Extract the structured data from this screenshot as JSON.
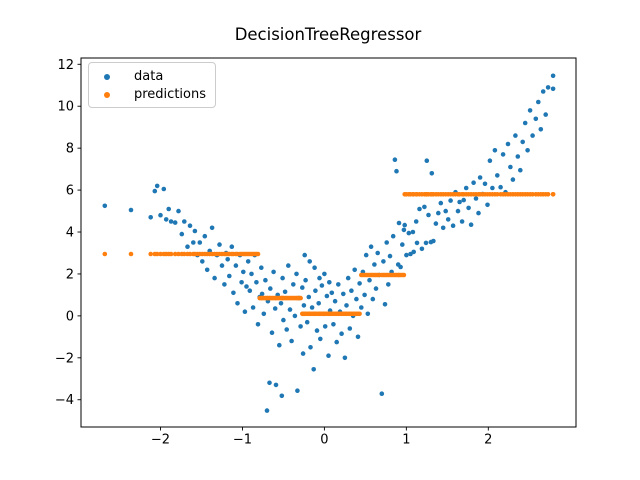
{
  "title": "DecisionTreeRegressor",
  "legend": {
    "items": [
      {
        "label": "data",
        "color": "#1f77b4"
      },
      {
        "label": "predictions",
        "color": "#ff7f0e"
      }
    ]
  },
  "colors": {
    "data_series": "#1f77b4",
    "prediction_series": "#ff7f0e",
    "spine": "#000000",
    "background": "#ffffff",
    "legend_border": "#cccccc"
  },
  "chart_data": {
    "type": "scatter",
    "title": "DecisionTreeRegressor",
    "xlabel": "",
    "ylabel": "",
    "grid": false,
    "legend_position": "upper left",
    "xlim": [
      -2.97,
      3.07
    ],
    "ylim": [
      -5.3,
      12.3
    ],
    "xticks": [
      -2,
      -1,
      0,
      1,
      2
    ],
    "yticks": [
      12,
      10,
      8,
      6,
      4,
      2,
      0,
      -2,
      -4
    ],
    "series": [
      {
        "name": "data",
        "type": "scatter",
        "color": "#1f77b4",
        "x": [
          -2.68,
          -2.36,
          -2.12,
          -2.07,
          -2.04,
          -2.0,
          -1.96,
          -1.93,
          -1.9,
          -1.87,
          -1.82,
          -1.78,
          -1.74,
          -1.71,
          -1.67,
          -1.64,
          -1.6,
          -1.58,
          -1.55,
          -1.52,
          -1.49,
          -1.46,
          -1.43,
          -1.4,
          -1.37,
          -1.34,
          -1.31,
          -1.28,
          -1.25,
          -1.22,
          -1.2,
          -1.18,
          -1.16,
          -1.13,
          -1.11,
          -1.08,
          -1.06,
          -1.03,
          -1.01,
          -0.99,
          -0.97,
          -0.95,
          -0.93,
          -0.91,
          -0.89,
          -0.87,
          -0.85,
          -0.83,
          -0.81,
          -0.79,
          -0.77,
          -0.76,
          -0.74,
          -0.72,
          -0.7,
          -0.69,
          -0.67,
          -0.66,
          -0.64,
          -0.62,
          -0.6,
          -0.59,
          -0.57,
          -0.55,
          -0.53,
          -0.52,
          -0.51,
          -0.5,
          -0.48,
          -0.46,
          -0.44,
          -0.42,
          -0.4,
          -0.38,
          -0.36,
          -0.34,
          -0.33,
          -0.31,
          -0.29,
          -0.27,
          -0.26,
          -0.25,
          -0.24,
          -0.23,
          -0.21,
          -0.19,
          -0.18,
          -0.17,
          -0.15,
          -0.13,
          -0.12,
          -0.11,
          -0.09,
          -0.07,
          -0.06,
          -0.05,
          -0.03,
          -0.01,
          0.0,
          0.01,
          0.03,
          0.05,
          0.06,
          0.07,
          0.09,
          0.11,
          0.13,
          0.15,
          0.17,
          0.19,
          0.21,
          0.23,
          0.25,
          0.27,
          0.29,
          0.31,
          0.33,
          0.35,
          0.37,
          0.39,
          0.41,
          0.43,
          0.45,
          0.47,
          0.49,
          0.51,
          0.53,
          0.55,
          0.57,
          0.59,
          0.61,
          0.63,
          0.65,
          0.67,
          0.7,
          0.72,
          0.74,
          0.76,
          0.78,
          0.8,
          0.82,
          0.84,
          0.86,
          0.88,
          0.9,
          0.91,
          0.93,
          0.95,
          0.97,
          0.98,
          1.0,
          1.03,
          1.05,
          1.08,
          1.09,
          1.12,
          1.13,
          1.16,
          1.19,
          1.22,
          1.24,
          1.25,
          1.27,
          1.3,
          1.31,
          1.33,
          1.36,
          1.39,
          1.42,
          1.45,
          1.48,
          1.51,
          1.54,
          1.57,
          1.6,
          1.63,
          1.65,
          1.68,
          1.7,
          1.73,
          1.76,
          1.79,
          1.82,
          1.85,
          1.88,
          1.9,
          1.93,
          1.96,
          1.99,
          2.02,
          2.05,
          2.08,
          2.11,
          2.15,
          2.18,
          2.21,
          2.24,
          2.27,
          2.3,
          2.33,
          2.36,
          2.39,
          2.42,
          2.45,
          2.48,
          2.51,
          2.54,
          2.58,
          2.61,
          2.64,
          2.67,
          2.7,
          2.73,
          2.79,
          2.79
        ],
        "y": [
          5.25,
          5.05,
          4.7,
          5.95,
          6.2,
          4.8,
          6.05,
          4.6,
          5.1,
          4.5,
          4.45,
          5.0,
          3.9,
          4.5,
          3.3,
          4.3,
          3.5,
          4.05,
          2.9,
          3.5,
          2.6,
          3.8,
          2.2,
          3.1,
          4.2,
          1.8,
          2.9,
          3.4,
          2.4,
          1.5,
          3.0,
          2.7,
          1.9,
          3.3,
          1.1,
          2.4,
          0.6,
          2.9,
          1.6,
          2.1,
          0.2,
          1.4,
          2.6,
          1.2,
          2.0,
          0.4,
          2.9,
          1.6,
          -0.4,
          0.9,
          2.3,
          1.05,
          0.1,
          1.7,
          -4.52,
          0.7,
          -3.19,
          1.3,
          -0.8,
          2.1,
          0.35,
          -3.29,
          1.0,
          -1.4,
          0.6,
          -3.81,
          1.8,
          -0.2,
          1.15,
          -0.65,
          2.4,
          0.3,
          -1.2,
          1.5,
          0.0,
          2.0,
          -3.57,
          0.85,
          -0.5,
          1.35,
          -1.8,
          0.5,
          2.9,
          1.7,
          -0.3,
          0.9,
          2.6,
          -1.5,
          0.4,
          -2.55,
          2.3,
          1.2,
          -0.7,
          0.6,
          1.8,
          -1.1,
          1.45,
          0.1,
          2.0,
          -0.5,
          0.95,
          -1.9,
          1.6,
          0.25,
          1.1,
          -0.4,
          0.7,
          -1.25,
          1.5,
          0.2,
          -0.85,
          1.05,
          -2.0,
          0.5,
          1.8,
          -0.6,
          1.2,
          0.0,
          2.2,
          0.8,
          -1.0,
          1.55,
          0.4,
          2.1,
          1.0,
          2.9,
          0.1,
          1.7,
          3.3,
          0.8,
          2.45,
          1.3,
          3.0,
          1.95,
          -3.71,
          2.6,
          0.55,
          3.5,
          1.5,
          2.85,
          2.1,
          3.8,
          7.45,
          6.9,
          2.45,
          4.43,
          2.33,
          3.4,
          4.1,
          4.33,
          2.9,
          3.95,
          2.95,
          4.0,
          3.05,
          4.5,
          3.48,
          5.1,
          3.2,
          5.2,
          3.48,
          7.4,
          4.81,
          3.52,
          6.8,
          3.57,
          4.4,
          4.9,
          5.38,
          4.2,
          5.0,
          4.6,
          5.5,
          4.3,
          5.9,
          5.0,
          5.43,
          4.5,
          5.52,
          6.1,
          5.15,
          4.35,
          6.35,
          5.6,
          4.9,
          6.6,
          5.81,
          6.3,
          5.3,
          7.4,
          6.1,
          7.9,
          6.7,
          6.14,
          7.7,
          5.9,
          8.2,
          7.1,
          6.5,
          8.6,
          7.6,
          6.95,
          8.3,
          9.2,
          7.9,
          9.8,
          8.6,
          9.4,
          10.2,
          8.9,
          10.7,
          9.6,
          10.9,
          11.45,
          10.83
        ]
      },
      {
        "name": "predictions",
        "type": "step_scatter",
        "color": "#ff7f0e",
        "note": "prediction evaluated at every data x; piecewise-constant decision tree output",
        "step_boundaries": [
          -0.8,
          -0.27,
          0.435,
          0.975
        ],
        "step_values": [
          2.95,
          0.85,
          0.1,
          1.95,
          5.8
        ],
        "x_range": [
          -2.68,
          2.79
        ]
      }
    ]
  }
}
